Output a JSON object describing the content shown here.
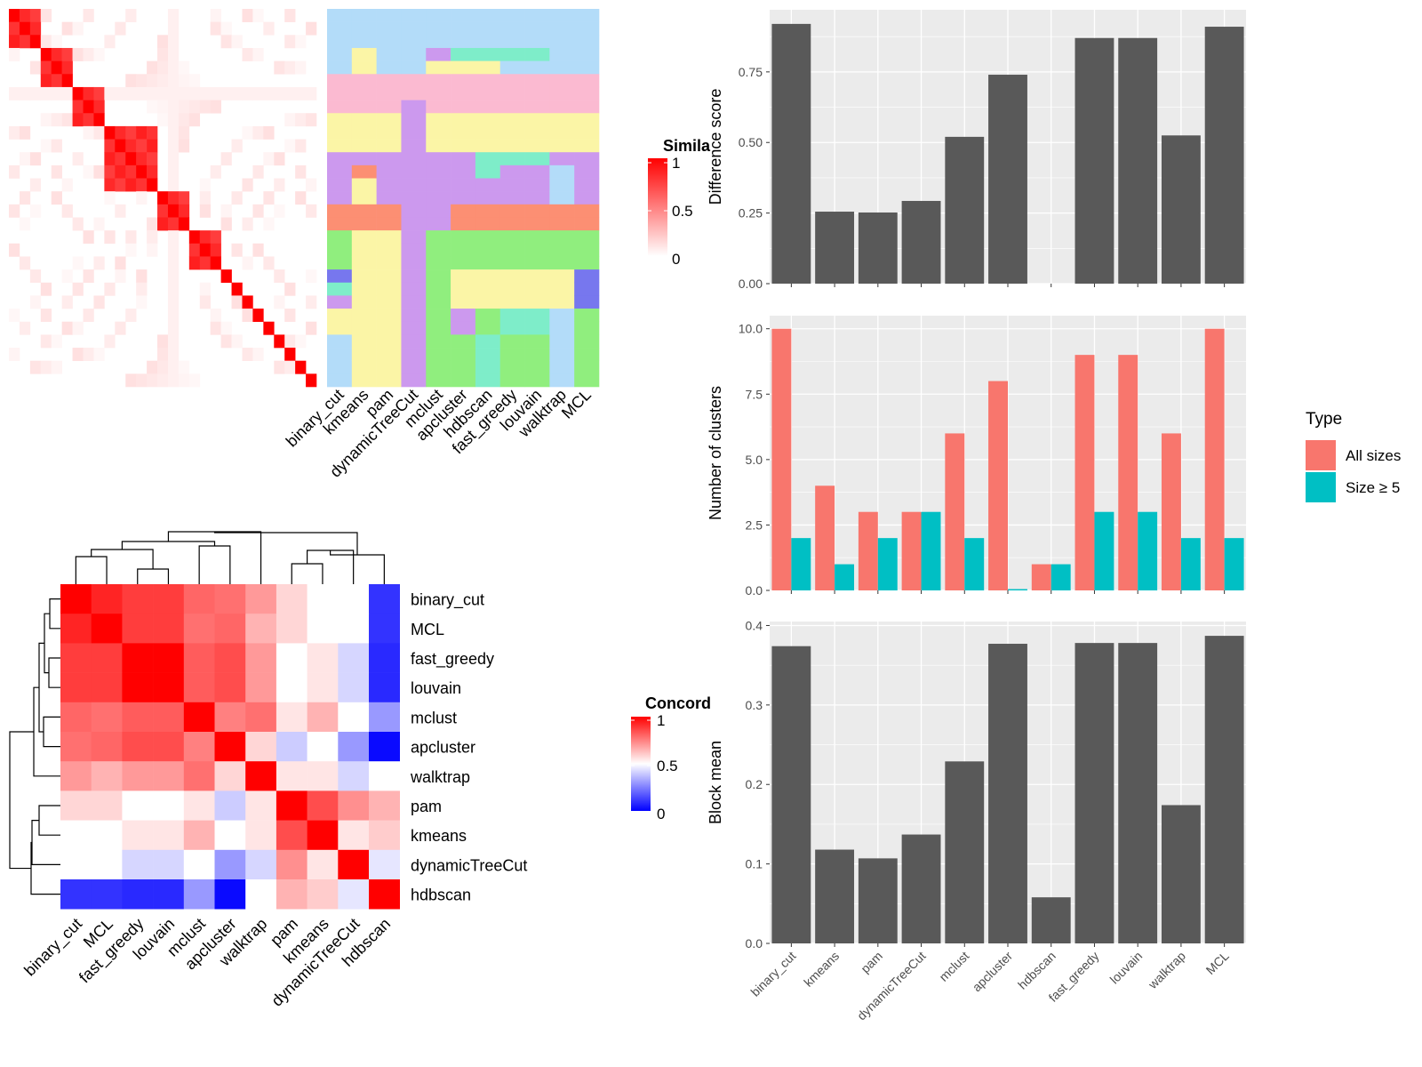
{
  "colors": {
    "panel_bg": "#ebebeb",
    "grid": "#ffffff",
    "bar": "#595959",
    "all_sizes": "#F8766D",
    "size5": "#00BFC4",
    "sim_high": "#ff0000",
    "sim_low": "#ffffff",
    "conc_low": "#0000ff",
    "conc_mid": "#ffffff",
    "conc_high": "#ff0000"
  },
  "similarity": {
    "legend_title": "Similarity",
    "legend_ticks": [
      "1",
      "0.5",
      "0"
    ],
    "methods": [
      "binary_cut",
      "kmeans",
      "pam",
      "dynamicTreeCut",
      "mclust",
      "apcluster",
      "hdbscan",
      "fast_greedy",
      "louvain",
      "walktrap",
      "MCL"
    ],
    "n": 29,
    "blocks": [
      [
        0,
        2
      ],
      [
        3,
        5
      ],
      [
        6,
        8
      ],
      [
        9,
        13
      ],
      [
        14,
        16
      ],
      [
        17,
        19
      ],
      [
        20,
        20
      ],
      [
        21,
        21
      ],
      [
        22,
        22
      ],
      [
        23,
        23
      ],
      [
        24,
        24
      ],
      [
        25,
        25
      ],
      [
        26,
        26
      ],
      [
        27,
        27
      ],
      [
        28,
        28
      ]
    ],
    "palette": [
      "#b3dcf9",
      "#fbbad1",
      "#fbf5a6",
      "#cc99ee",
      "#fc8f73",
      "#90ee7e",
      "#7777ee",
      "#7eedc9"
    ],
    "labels_by_method": [
      [
        0,
        0,
        0,
        0,
        0,
        1,
        1,
        1,
        2,
        2,
        2,
        3,
        3,
        3,
        3,
        4,
        4,
        5,
        5,
        5,
        6,
        7,
        3,
        2,
        2,
        0,
        0,
        0,
        0
      ],
      [
        0,
        0,
        0,
        2,
        2,
        1,
        1,
        1,
        2,
        2,
        2,
        3,
        4,
        2,
        2,
        4,
        4,
        2,
        2,
        2,
        2,
        2,
        2,
        2,
        2,
        2,
        2,
        2,
        2
      ],
      [
        0,
        0,
        0,
        0,
        0,
        1,
        1,
        1,
        2,
        2,
        2,
        3,
        3,
        3,
        3,
        4,
        4,
        2,
        2,
        2,
        2,
        2,
        2,
        2,
        2,
        2,
        2,
        2,
        2
      ],
      [
        0,
        0,
        0,
        0,
        0,
        1,
        1,
        3,
        3,
        3,
        3,
        3,
        3,
        3,
        3,
        3,
        3,
        3,
        3,
        3,
        3,
        3,
        3,
        3,
        3,
        3,
        3,
        3,
        3
      ],
      [
        0,
        0,
        0,
        3,
        2,
        1,
        1,
        1,
        2,
        2,
        2,
        3,
        3,
        3,
        3,
        3,
        3,
        5,
        5,
        5,
        5,
        5,
        5,
        5,
        5,
        5,
        5,
        5,
        5
      ],
      [
        0,
        0,
        0,
        7,
        2,
        1,
        1,
        1,
        2,
        2,
        2,
        3,
        3,
        3,
        3,
        4,
        4,
        5,
        5,
        5,
        2,
        2,
        2,
        3,
        3,
        5,
        5,
        5,
        5
      ],
      [
        0,
        0,
        0,
        7,
        2,
        1,
        1,
        1,
        2,
        2,
        2,
        7,
        7,
        3,
        3,
        4,
        4,
        5,
        5,
        5,
        2,
        2,
        2,
        5,
        5,
        7,
        7,
        7,
        7
      ],
      [
        0,
        0,
        0,
        7,
        0,
        1,
        1,
        1,
        2,
        2,
        2,
        7,
        3,
        3,
        3,
        4,
        4,
        5,
        5,
        5,
        2,
        2,
        2,
        7,
        7,
        5,
        5,
        5,
        5
      ],
      [
        0,
        0,
        0,
        7,
        0,
        1,
        1,
        1,
        2,
        2,
        2,
        7,
        3,
        3,
        3,
        4,
        4,
        5,
        5,
        5,
        2,
        2,
        2,
        7,
        7,
        5,
        5,
        5,
        5
      ],
      [
        0,
        0,
        0,
        0,
        0,
        1,
        1,
        1,
        2,
        2,
        2,
        3,
        0,
        0,
        0,
        4,
        4,
        5,
        5,
        5,
        2,
        2,
        2,
        0,
        0,
        0,
        0,
        0,
        0
      ],
      [
        0,
        0,
        0,
        0,
        0,
        1,
        1,
        1,
        2,
        2,
        2,
        3,
        3,
        3,
        3,
        4,
        4,
        5,
        5,
        5,
        6,
        6,
        6,
        5,
        5,
        5,
        5,
        5,
        5
      ]
    ]
  },
  "concordance": {
    "legend_title": "Concordance",
    "legend_ticks": [
      "1",
      "0.5",
      "0"
    ],
    "order": [
      "binary_cut",
      "MCL",
      "fast_greedy",
      "louvain",
      "mclust",
      "apcluster",
      "walktrap",
      "pam",
      "kmeans",
      "dynamicTreeCut",
      "hdbscan"
    ],
    "matrix": [
      [
        1.0,
        0.93,
        0.88,
        0.88,
        0.8,
        0.78,
        0.7,
        0.58,
        0.5,
        0.5,
        0.1
      ],
      [
        0.93,
        1.0,
        0.88,
        0.88,
        0.78,
        0.8,
        0.65,
        0.58,
        0.5,
        0.5,
        0.1
      ],
      [
        0.88,
        0.88,
        1.0,
        1.0,
        0.82,
        0.85,
        0.7,
        0.5,
        0.55,
        0.42,
        0.08
      ],
      [
        0.88,
        0.88,
        1.0,
        1.0,
        0.82,
        0.85,
        0.7,
        0.5,
        0.55,
        0.42,
        0.08
      ],
      [
        0.8,
        0.78,
        0.82,
        0.82,
        1.0,
        0.75,
        0.78,
        0.55,
        0.65,
        0.5,
        0.3
      ],
      [
        0.78,
        0.8,
        0.85,
        0.85,
        0.75,
        1.0,
        0.58,
        0.4,
        0.5,
        0.3,
        0.02
      ],
      [
        0.7,
        0.65,
        0.7,
        0.7,
        0.78,
        0.58,
        1.0,
        0.55,
        0.55,
        0.42,
        0.5
      ],
      [
        0.58,
        0.58,
        0.5,
        0.5,
        0.55,
        0.4,
        0.55,
        1.0,
        0.85,
        0.72,
        0.65
      ],
      [
        0.5,
        0.5,
        0.55,
        0.55,
        0.65,
        0.5,
        0.55,
        0.85,
        1.0,
        0.55,
        0.6
      ],
      [
        0.5,
        0.5,
        0.42,
        0.42,
        0.5,
        0.3,
        0.42,
        0.72,
        0.55,
        1.0,
        0.45
      ],
      [
        0.1,
        0.1,
        0.08,
        0.08,
        0.3,
        0.02,
        0.5,
        0.65,
        0.6,
        0.45,
        1.0
      ]
    ]
  },
  "chart_data": [
    {
      "type": "bar",
      "categories": [
        "binary_cut",
        "kmeans",
        "pam",
        "dynamicTreeCut",
        "mclust",
        "apcluster",
        "hdbscan",
        "fast_greedy",
        "louvain",
        "walktrap",
        "MCL"
      ],
      "values": [
        0.92,
        0.255,
        0.252,
        0.293,
        0.52,
        0.74,
        0,
        0.87,
        0.87,
        0.525,
        0.91
      ],
      "ylabel": "Difference score",
      "ylim": [
        0,
        0.97
      ],
      "yticks": [
        "0.00",
        "0.25",
        "0.50",
        "0.75"
      ],
      "grid": true
    },
    {
      "type": "bar",
      "categories": [
        "binary_cut",
        "kmeans",
        "pam",
        "dynamicTreeCut",
        "mclust",
        "apcluster",
        "hdbscan",
        "fast_greedy",
        "louvain",
        "walktrap",
        "MCL"
      ],
      "series": [
        {
          "name": "All sizes",
          "values": [
            10,
            4,
            3,
            3,
            6,
            8,
            1,
            9,
            9,
            6,
            10
          ]
        },
        {
          "name": "Size ≥ 5",
          "values": [
            2,
            1,
            2,
            3,
            2,
            0.05,
            1,
            3,
            3,
            2,
            2
          ]
        }
      ],
      "ylabel": "Number of clusters",
      "ylim": [
        0,
        10.5
      ],
      "yticks": [
        "0.0",
        "2.5",
        "5.0",
        "7.5",
        "10.0"
      ],
      "legend_title": "Type",
      "legend_position": "right",
      "grid": true
    },
    {
      "type": "bar",
      "categories": [
        "binary_cut",
        "kmeans",
        "pam",
        "dynamicTreeCut",
        "mclust",
        "apcluster",
        "hdbscan",
        "fast_greedy",
        "louvain",
        "walktrap",
        "MCL"
      ],
      "values": [
        0.374,
        0.118,
        0.107,
        0.137,
        0.229,
        0.377,
        0.058,
        0.378,
        0.378,
        0.174,
        0.387
      ],
      "ylabel": "Block mean",
      "ylim": [
        0,
        0.405
      ],
      "yticks": [
        "0.0",
        "0.1",
        "0.2",
        "0.3",
        "0.4"
      ],
      "grid": true
    }
  ]
}
